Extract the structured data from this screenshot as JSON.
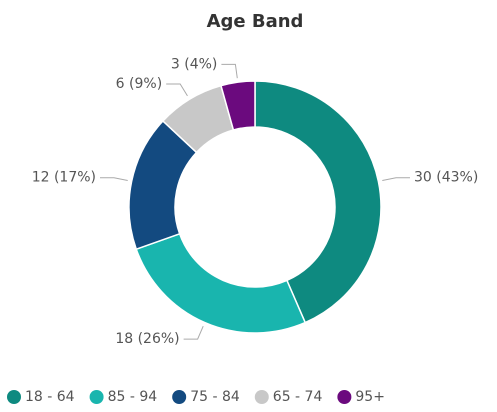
{
  "chart_data": {
    "type": "donut",
    "title": "Age Band",
    "categories": [
      "18 - 64",
      "85 - 94",
      "75 - 84",
      "65 - 74",
      "95+"
    ],
    "values": [
      30,
      18,
      12,
      6,
      3
    ],
    "value_labels": [
      "30 (43%)",
      "18 (26%)",
      "12 (17%)",
      "6 (9%)",
      "3 (4%)"
    ],
    "colors": [
      "#0e8a80",
      "#19b5ae",
      "#134a80",
      "#c8c8c8",
      "#6b0a7e"
    ],
    "legend": "bottom"
  }
}
